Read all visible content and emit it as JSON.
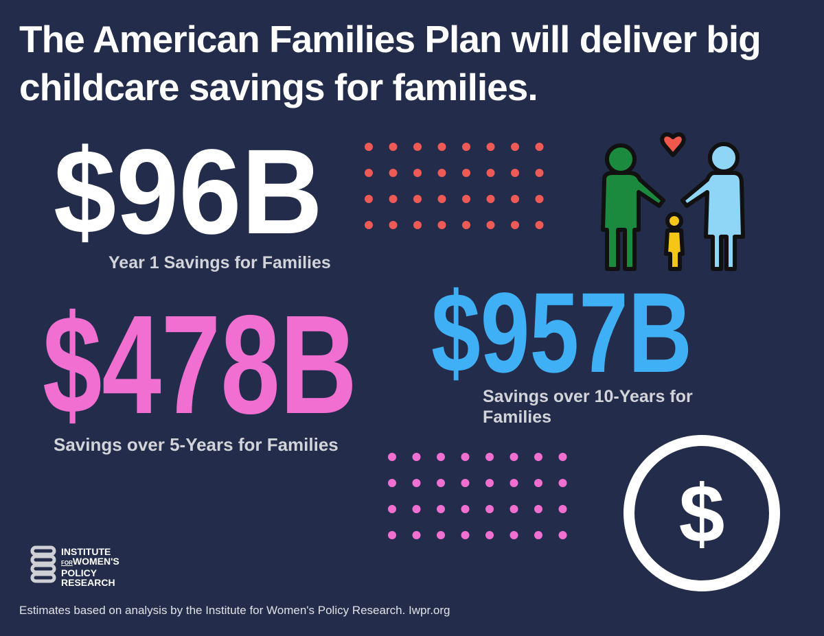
{
  "title": "The American Families Plan will deliver big childcare savings for families.",
  "stats": [
    {
      "amount": "$96B",
      "caption": "Year 1 Savings for Families"
    },
    {
      "amount": "$478B",
      "caption": "Savings over 5-Years for Families"
    },
    {
      "amount": "$957B",
      "caption": "Savings over 10-Years for Families"
    }
  ],
  "icon_symbol": "$",
  "logo": {
    "line1": "INSTITUTE",
    "for": "FOR",
    "line2": "WOMEN'S",
    "line3": "POLICY",
    "line4": "RESEARCH"
  },
  "footer": "Estimates based on analysis by the Institute for Women's Policy Research. Iwpr.org"
}
